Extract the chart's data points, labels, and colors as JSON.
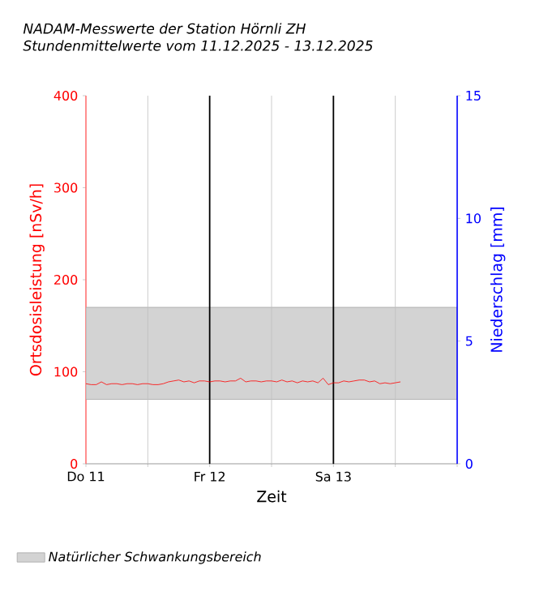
{
  "chart_data": {
    "type": "line",
    "title": "NADAM-Messwerte der Station Hörnli ZH",
    "subtitle": "Stundenmittelwerte vom 11.12.2025 - 13.12.2025",
    "xlabel": "Zeit",
    "ylabel": "Ortsdosisleistung [nSv/h]",
    "y2label": "Niederschlag [mm]",
    "x": [
      "2025-12-11T00:00",
      "2025-12-11T01:00",
      "2025-12-11T02:00",
      "2025-12-11T03:00",
      "2025-12-11T04:00",
      "2025-12-11T05:00",
      "2025-12-11T06:00",
      "2025-12-11T07:00",
      "2025-12-11T08:00",
      "2025-12-11T09:00",
      "2025-12-11T10:00",
      "2025-12-11T11:00",
      "2025-12-11T12:00",
      "2025-12-11T13:00",
      "2025-12-11T14:00",
      "2025-12-11T15:00",
      "2025-12-11T16:00",
      "2025-12-11T17:00",
      "2025-12-11T18:00",
      "2025-12-11T19:00",
      "2025-12-11T20:00",
      "2025-12-11T21:00",
      "2025-12-11T22:00",
      "2025-12-11T23:00",
      "2025-12-12T00:00",
      "2025-12-12T01:00",
      "2025-12-12T02:00",
      "2025-12-12T03:00",
      "2025-12-12T04:00",
      "2025-12-12T05:00",
      "2025-12-12T06:00",
      "2025-12-12T07:00",
      "2025-12-12T08:00",
      "2025-12-12T09:00",
      "2025-12-12T10:00",
      "2025-12-12T11:00",
      "2025-12-12T12:00",
      "2025-12-12T13:00",
      "2025-12-12T14:00",
      "2025-12-12T15:00",
      "2025-12-12T16:00",
      "2025-12-12T17:00",
      "2025-12-12T18:00",
      "2025-12-12T19:00",
      "2025-12-12T20:00",
      "2025-12-12T21:00",
      "2025-12-12T22:00",
      "2025-12-12T23:00",
      "2025-12-13T00:00",
      "2025-12-13T01:00",
      "2025-12-13T02:00",
      "2025-12-13T03:00",
      "2025-12-13T04:00",
      "2025-12-13T05:00",
      "2025-12-13T06:00",
      "2025-12-13T07:00",
      "2025-12-13T08:00",
      "2025-12-13T09:00",
      "2025-12-13T10:00",
      "2025-12-13T11:00",
      "2025-12-13T12:00",
      "2025-12-13T13:00"
    ],
    "series": [
      {
        "color": "#ff0000",
        "values": [
          87,
          86,
          86,
          89,
          86,
          87,
          87,
          86,
          87,
          87,
          86,
          87,
          87,
          86,
          86,
          87,
          89,
          90,
          91,
          89,
          90,
          88,
          90,
          90,
          89,
          90,
          90,
          89,
          90,
          90,
          93,
          89,
          90,
          90,
          89,
          90,
          90,
          89,
          91,
          89,
          90,
          88,
          90,
          89,
          90,
          88,
          93,
          86,
          88,
          88,
          90,
          89,
          90,
          91,
          91,
          89,
          90,
          87,
          88,
          87,
          88,
          89
        ]
      }
    ],
    "xlim": [
      "2025-12-11T00:00",
      "2025-12-14T00:00"
    ],
    "xticks": [
      {
        "value": "2025-12-11T00:00",
        "label": "Do 11"
      },
      {
        "value": "2025-12-11T12:00",
        "label": null
      },
      {
        "value": "2025-12-12T00:00",
        "label": "Fr 12"
      },
      {
        "value": "2025-12-12T12:00",
        "label": null
      },
      {
        "value": "2025-12-13T00:00",
        "label": "Sa 13"
      },
      {
        "value": "2025-12-13T12:00",
        "label": null
      },
      {
        "value": "2025-12-14T00:00",
        "label": null
      }
    ],
    "ylim": [
      0,
      400
    ],
    "yticks": [
      0,
      100,
      200,
      300,
      400
    ],
    "y2lim": [
      0,
      15
    ],
    "y2ticks": [
      0,
      5,
      10,
      15
    ],
    "bands": [
      {
        "axis": "y",
        "from": 70,
        "to": 170,
        "label": "Natürlicher Schwankungsbereich",
        "color": "#d3d3d3"
      }
    ],
    "grid": "x",
    "legend": "bottom",
    "marker": "none",
    "line_style": "solid"
  }
}
